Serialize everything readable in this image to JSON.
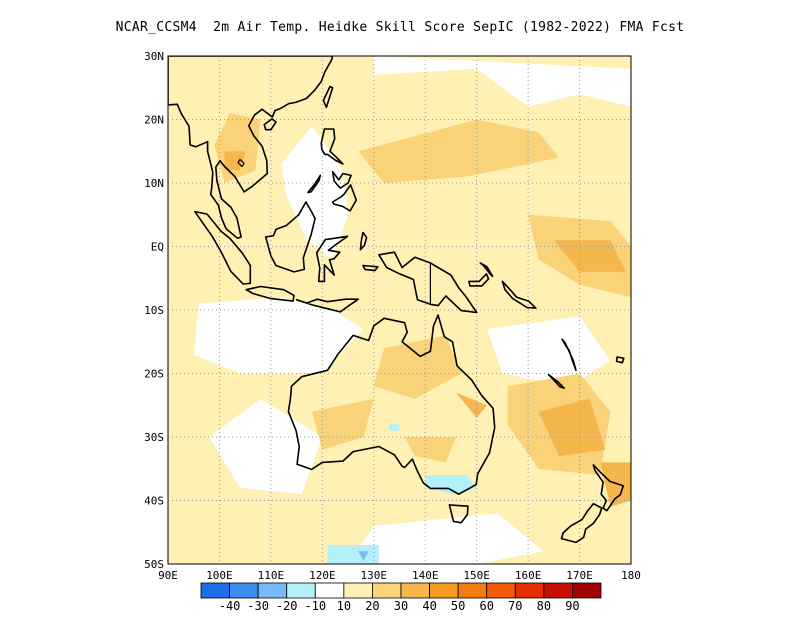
{
  "title": "NCAR_CCSM4  2m Air Temp. Heidke Skill Score SepIC (1982-2022) FMA Fcst",
  "map": {
    "lon_range": [
      90,
      180
    ],
    "lat_range": [
      -50,
      30
    ],
    "lon_ticks": [
      {
        "v": 90,
        "label": "90E"
      },
      {
        "v": 100,
        "label": "100E"
      },
      {
        "v": 110,
        "label": "110E"
      },
      {
        "v": 120,
        "label": "120E"
      },
      {
        "v": 130,
        "label": "130E"
      },
      {
        "v": 140,
        "label": "140E"
      },
      {
        "v": 150,
        "label": "150E"
      },
      {
        "v": 160,
        "label": "160E"
      },
      {
        "v": 170,
        "label": "170E"
      },
      {
        "v": 180,
        "label": "180"
      }
    ],
    "lat_ticks": [
      {
        "v": 30,
        "label": "30N"
      },
      {
        "v": 20,
        "label": "20N"
      },
      {
        "v": 10,
        "label": "10N"
      },
      {
        "v": 0,
        "label": "EQ"
      },
      {
        "v": -10,
        "label": "10S"
      },
      {
        "v": -20,
        "label": "20S"
      },
      {
        "v": -30,
        "label": "30S"
      },
      {
        "v": -40,
        "label": "40S"
      },
      {
        "v": -50,
        "label": "50S"
      }
    ],
    "grid": "dotted"
  },
  "colorbar": {
    "colors": [
      "#1e6eeb",
      "#3d8df0",
      "#78b9fa",
      "#b4f0fa",
      "#ffffff",
      "#fff0b4",
      "#fad278",
      "#f5b74b",
      "#f59b1e",
      "#f57d0f",
      "#f55a00",
      "#e62d00",
      "#c80f00",
      "#a00000"
    ],
    "labels": [
      "-40",
      "-30",
      "-20",
      "-10",
      "10",
      "20",
      "30",
      "40",
      "50",
      "60",
      "70",
      "80",
      "90"
    ]
  }
}
